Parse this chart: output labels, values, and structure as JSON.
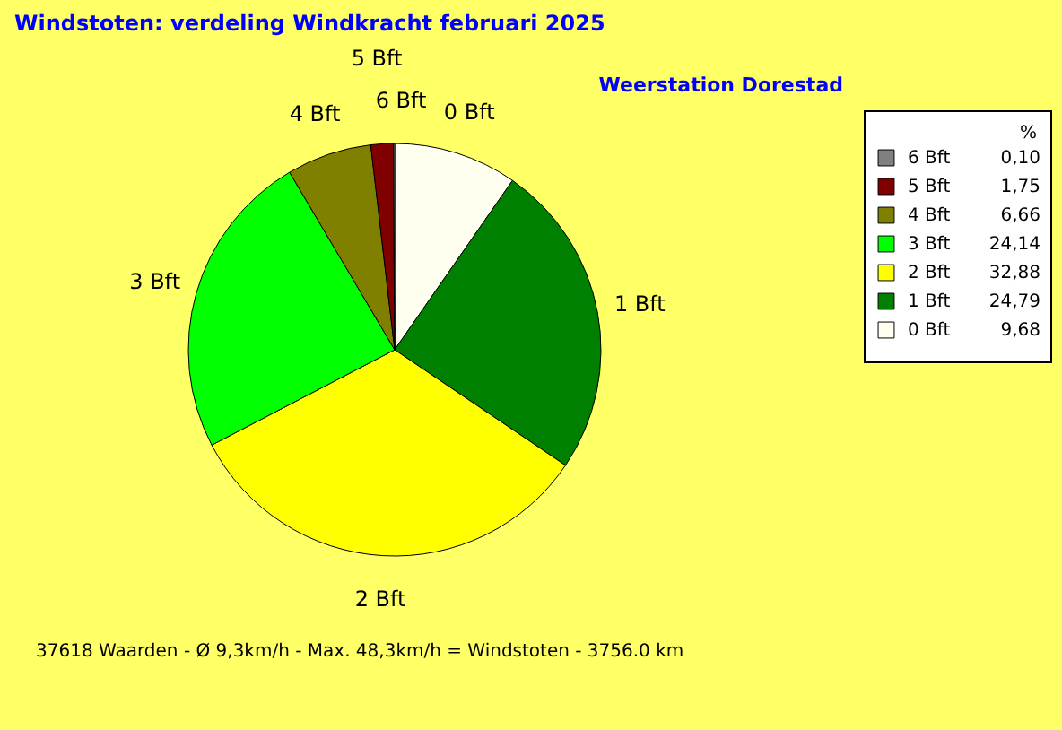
{
  "chart_data": {
    "type": "pie",
    "title": "Windstoten: verdeling Windkracht  februari 2025",
    "subtitle": "Weerstation Dorestad",
    "legend_title": "%",
    "legend": "right",
    "categories": [
      "0 Bft",
      "1 Bft",
      "2 Bft",
      "3 Bft",
      "4 Bft",
      "5 Bft",
      "6 Bft"
    ],
    "values": [
      9.68,
      24.79,
      32.88,
      24.14,
      6.66,
      1.75,
      0.1
    ],
    "value_labels": [
      "9,68",
      "24,79",
      "32,88",
      "24,14",
      "6,66",
      "1,75",
      "0,10"
    ],
    "colors": [
      "#fffff0",
      "#008000",
      "#ffff00",
      "#00ff00",
      "#808000",
      "#800000",
      "#808080"
    ],
    "annotations": [
      "37618 Waarden   -   Ø 9,3km/h  -  Max. 48,3km/h = Windstoten   -   3756.0 km"
    ]
  }
}
